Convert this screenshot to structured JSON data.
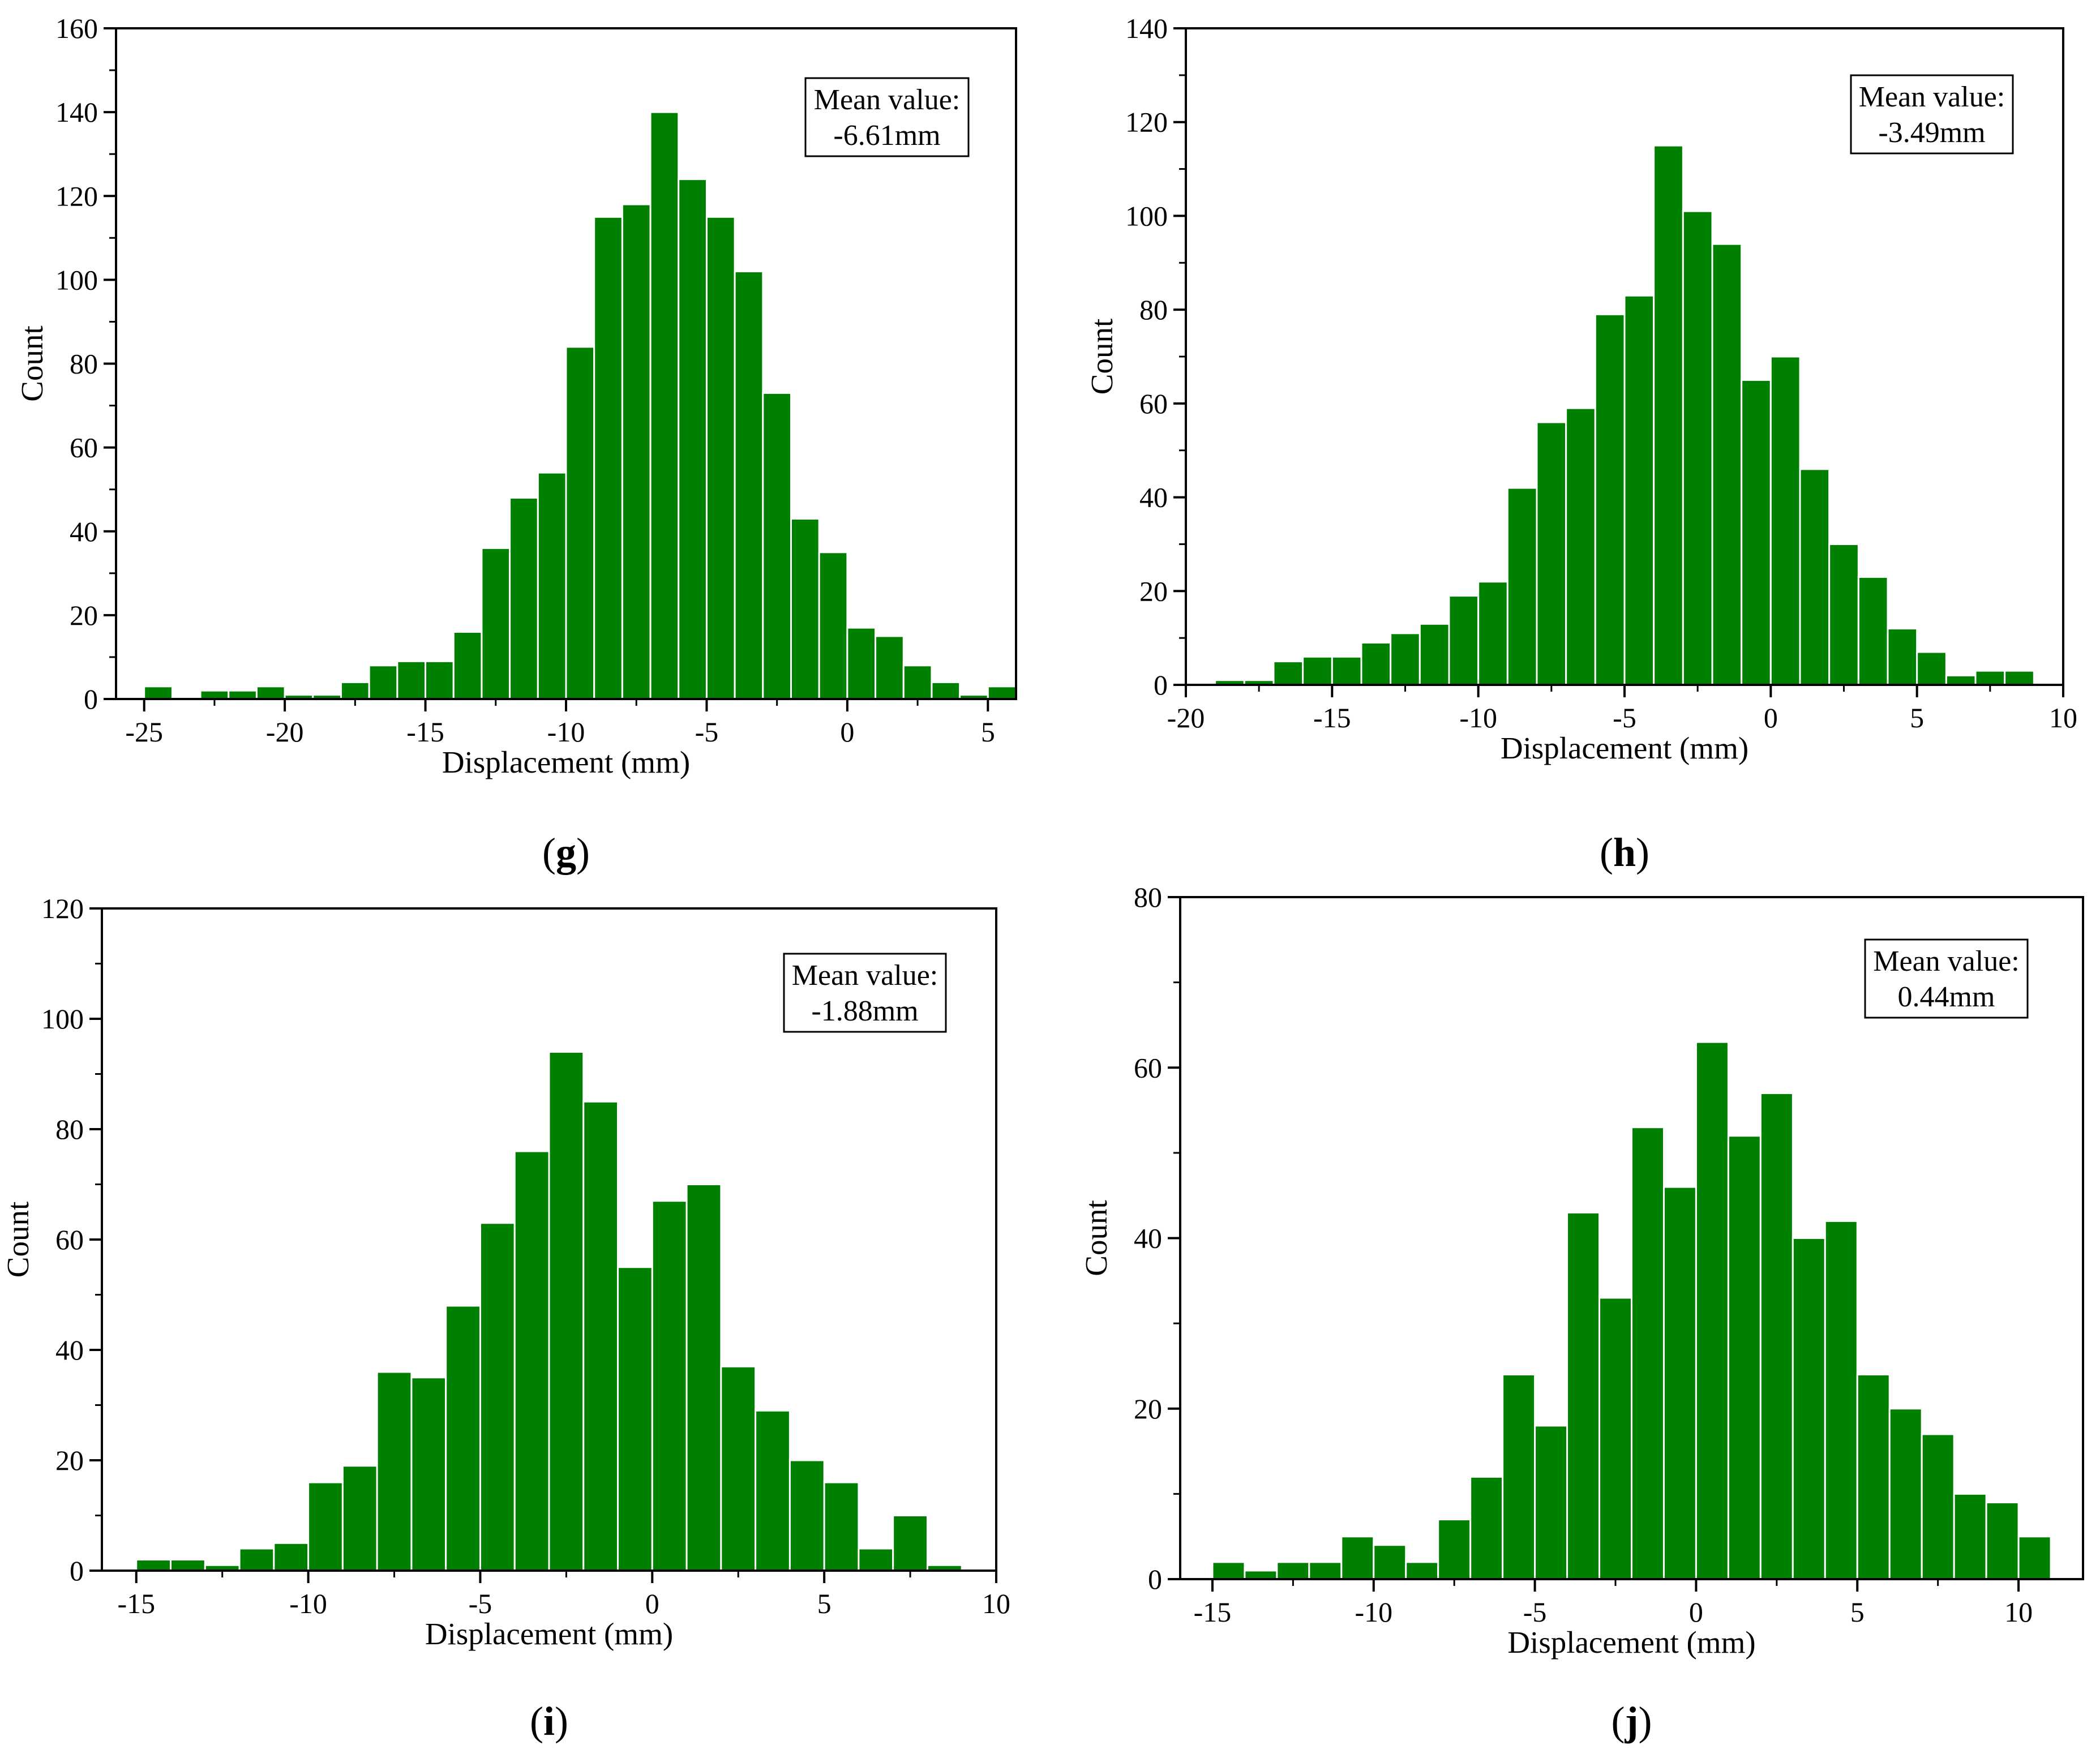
{
  "colors": {
    "bar": "#008000",
    "bar_edge": "#ffffff",
    "axis": "#000000"
  },
  "chart_data": [
    {
      "type": "bar",
      "panel_label": "(g)",
      "panel_letter": "g",
      "xlabel": "Displacement (mm)",
      "ylabel": "Count",
      "xlim": [
        -26,
        6
      ],
      "ylim": [
        0,
        160
      ],
      "xticks": [
        -25,
        -20,
        -15,
        -10,
        -5,
        0,
        5
      ],
      "xtick_labels": [
        "-25",
        "-20",
        "-15",
        "-10",
        "-5",
        "0",
        "5"
      ],
      "yticks": [
        0,
        20,
        40,
        60,
        80,
        100,
        120,
        140,
        160
      ],
      "ytick_labels": [
        "0",
        "20",
        "40",
        "60",
        "80",
        "100",
        "120",
        "140",
        "160"
      ],
      "bin_start": -25,
      "bin_width": 1,
      "values": [
        3,
        0,
        2,
        2,
        3,
        1,
        1,
        4,
        8,
        9,
        9,
        16,
        36,
        48,
        54,
        84,
        115,
        118,
        140,
        124,
        115,
        102,
        73,
        43,
        35,
        17,
        15,
        8,
        4,
        1,
        3
      ],
      "mean_label": "Mean value:",
      "mean_value": "-6.61mm"
    },
    {
      "type": "bar",
      "panel_label": "(h)",
      "panel_letter": "h",
      "xlabel": "Displacement (mm)",
      "ylabel": "Count",
      "xlim": [
        -20,
        10
      ],
      "ylim": [
        0,
        140
      ],
      "xticks": [
        -20,
        -15,
        -10,
        -5,
        0,
        5,
        10
      ],
      "xtick_labels": [
        "-20",
        "-15",
        "-10",
        "-5",
        "0",
        "5",
        "10"
      ],
      "yticks": [
        0,
        20,
        40,
        60,
        80,
        100,
        120,
        140
      ],
      "ytick_labels": [
        "0",
        "20",
        "40",
        "60",
        "80",
        "100",
        "120",
        "140"
      ],
      "bin_start": -19,
      "bin_width": 1,
      "values": [
        1,
        1,
        5,
        6,
        6,
        9,
        11,
        13,
        19,
        22,
        42,
        56,
        59,
        79,
        83,
        115,
        101,
        94,
        65,
        70,
        46,
        30,
        23,
        12,
        7,
        2,
        3,
        3
      ],
      "mean_label": "Mean value:",
      "mean_value": "-3.49mm"
    },
    {
      "type": "bar",
      "panel_label": "(i)",
      "panel_letter": "i",
      "xlabel": "Displacement (mm)",
      "ylabel": "Count",
      "xlim": [
        -16,
        10
      ],
      "ylim": [
        0,
        120
      ],
      "xticks": [
        -15,
        -10,
        -5,
        0,
        5,
        10
      ],
      "xtick_labels": [
        "-15",
        "-10",
        "-5",
        "0",
        "5",
        "10"
      ],
      "yticks": [
        0,
        20,
        40,
        60,
        80,
        100,
        120
      ],
      "ytick_labels": [
        "0",
        "20",
        "40",
        "60",
        "80",
        "100",
        "120"
      ],
      "bin_start": -15,
      "bin_width": 1,
      "values": [
        2,
        2,
        1,
        4,
        5,
        16,
        19,
        36,
        35,
        48,
        63,
        76,
        94,
        85,
        55,
        67,
        70,
        37,
        29,
        20,
        16,
        4,
        10,
        1
      ],
      "mean_label": "Mean value:",
      "mean_value": "-1.88mm"
    },
    {
      "type": "bar",
      "panel_label": "(j)",
      "panel_letter": "j",
      "xlabel": "Displacement (mm)",
      "ylabel": "Count",
      "xlim": [
        -16,
        12
      ],
      "ylim": [
        0,
        80
      ],
      "xticks": [
        -15,
        -10,
        -5,
        0,
        5,
        10
      ],
      "xtick_labels": [
        "-15",
        "-10",
        "-5",
        "0",
        "5",
        "10"
      ],
      "yticks": [
        0,
        20,
        40,
        60,
        80
      ],
      "ytick_labels": [
        "0",
        "20",
        "40",
        "60",
        "80"
      ],
      "bin_start": -15,
      "bin_width": 1,
      "values": [
        2,
        1,
        2,
        2,
        5,
        4,
        2,
        7,
        12,
        24,
        18,
        43,
        33,
        53,
        46,
        63,
        52,
        57,
        40,
        42,
        24,
        20,
        17,
        10,
        9,
        5
      ],
      "mean_label": "Mean value:",
      "mean_value": "0.44mm"
    }
  ]
}
